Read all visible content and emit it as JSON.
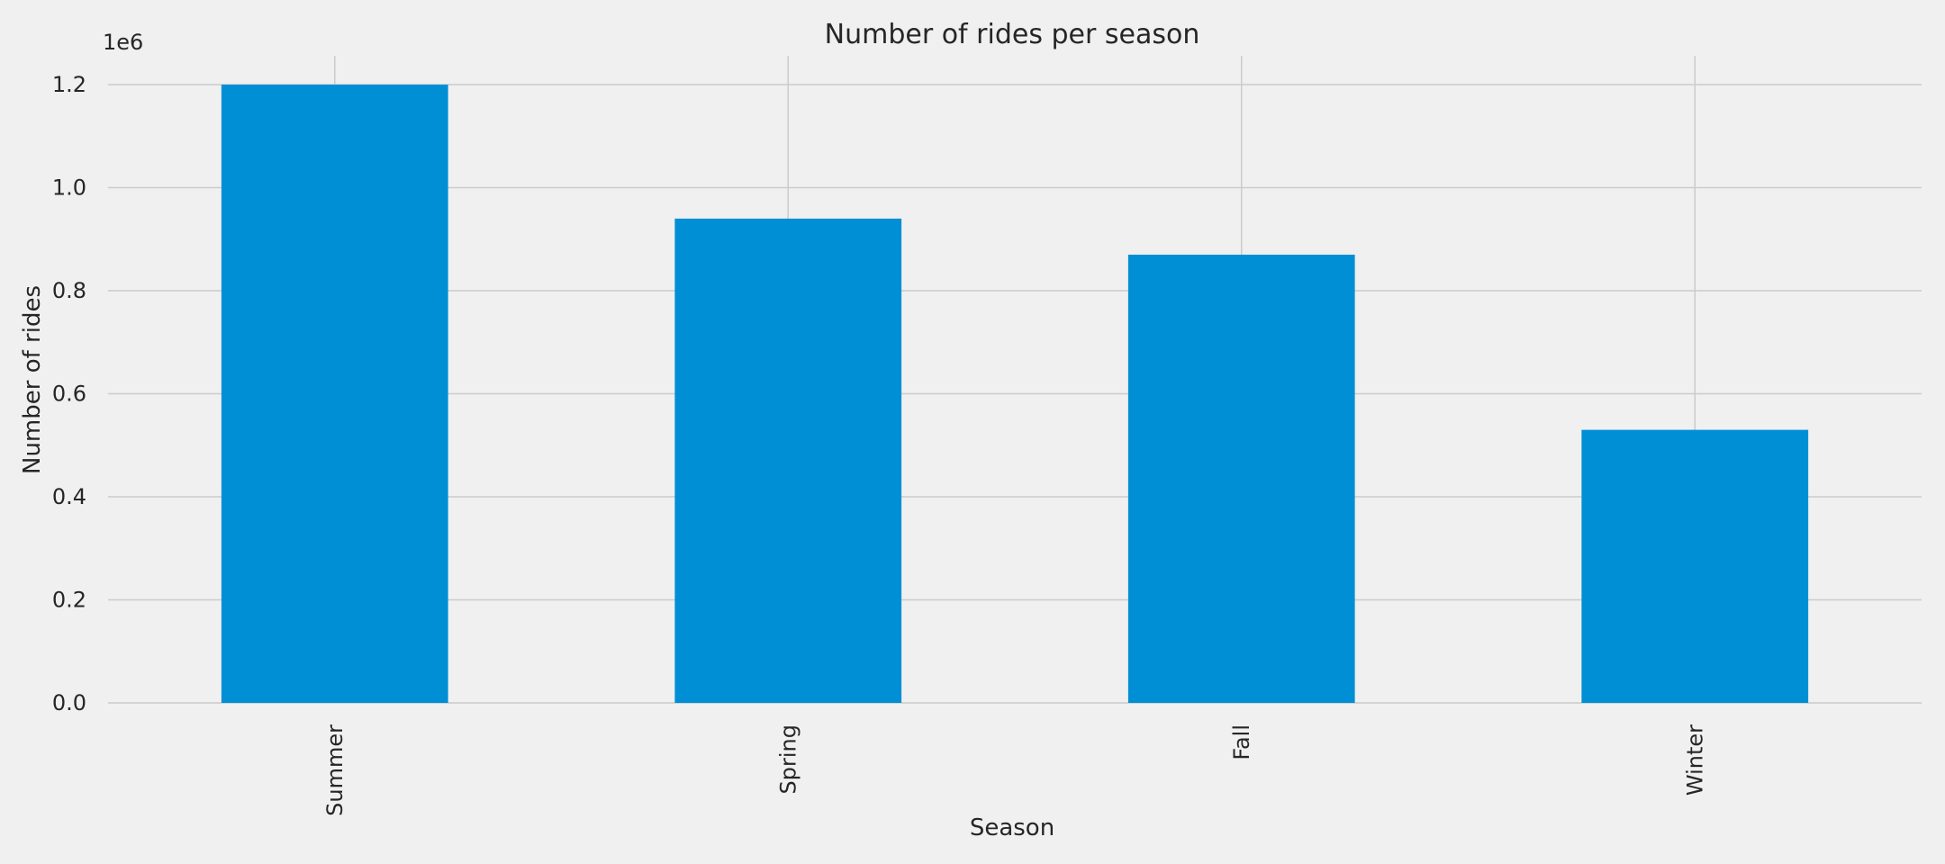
{
  "chart_data": {
    "type": "bar",
    "title": "Number of rides per season",
    "xlabel": "Season",
    "ylabel": "Number of rides",
    "offset_label": "1e6",
    "categories": [
      "Summer",
      "Spring",
      "Fall",
      "Winter"
    ],
    "values": [
      1200000,
      940000,
      870000,
      530000
    ],
    "yticks": [
      {
        "value": 0,
        "label": "0.0"
      },
      {
        "value": 200000,
        "label": "0.2"
      },
      {
        "value": 400000,
        "label": "0.4"
      },
      {
        "value": 600000,
        "label": "0.6"
      },
      {
        "value": 800000,
        "label": "0.8"
      },
      {
        "value": 1000000,
        "label": "1.0"
      },
      {
        "value": 1200000,
        "label": "1.2"
      }
    ],
    "ylim": [
      0,
      1256000
    ],
    "grid": true,
    "legend": false,
    "colors": {
      "bar": "#008fd5",
      "background": "#f0f0f0",
      "grid": "#cbcbcb",
      "text": "#262626"
    }
  }
}
